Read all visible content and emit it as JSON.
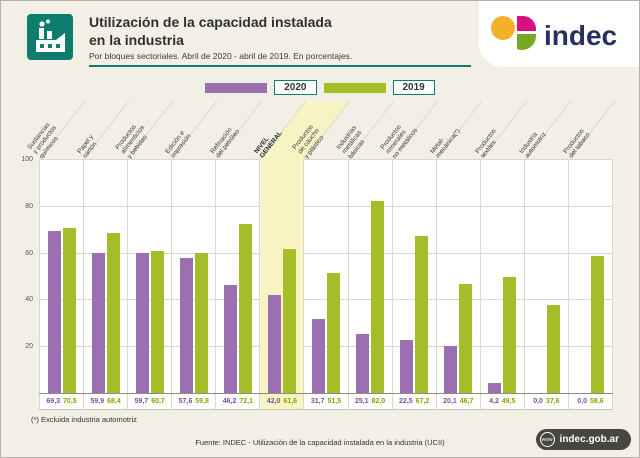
{
  "header": {
    "title_line1": "Utilización de la capacidad instalada",
    "title_line2": "en la industria",
    "subtitle": "Por bloques sectoriales. Abril de 2020 - abril de 2019. En porcentajes.",
    "logo_text": "indec"
  },
  "colors": {
    "teal": "#0e7d6d",
    "purple_2020": "#9a70b2",
    "green_2019": "#a4be2a",
    "highlight_yellow": "#f7f3c3",
    "logo_navy": "#26315f",
    "logo_yellow": "#f2b127",
    "logo_magenta": "#d6117e",
    "logo_green": "#76a822"
  },
  "chart_data": {
    "type": "bar",
    "title": "Utilización de la capacidad instalada en la industria",
    "xlabel": "",
    "ylabel": "",
    "ylim": [
      0,
      100
    ],
    "yticks": [
      100,
      80,
      60,
      40,
      20
    ],
    "grid": true,
    "legend_position": "top",
    "highlight_index": 5,
    "categories": [
      "Sustancias\ny productos\nquímicos",
      "Papel y\ncartón",
      "Productos\nalimenticios\ny bebidas",
      "Edición e\nimpresión",
      "Refinación\ndel petróleo",
      "NIVEL\nGENERAL",
      "Productos\nde caucho\ny plástico",
      "Industrias\nmetálicas\nbásicas",
      "Productos\nminerales\nno metálicos",
      "Metal-\nmecánica(*)",
      "Productos\ntextiles",
      "Industria\nautomotriz",
      "Productos\ndel tabaco"
    ],
    "series": [
      {
        "name": "2020",
        "color": "#9a70b2",
        "values": [
          69.3,
          59.9,
          59.7,
          57.6,
          46.2,
          42.0,
          31.7,
          25.1,
          22.5,
          20.1,
          4.2,
          0.0,
          0.0
        ]
      },
      {
        "name": "2019",
        "color": "#a4be2a",
        "values": [
          70.5,
          68.4,
          60.7,
          59.8,
          72.1,
          61.6,
          51.5,
          82.0,
          67.2,
          46.7,
          49.5,
          37.6,
          58.6
        ]
      }
    ],
    "value_labels": [
      [
        "69,3",
        "70,5"
      ],
      [
        "59,9",
        "68,4"
      ],
      [
        "59,7",
        "60,7"
      ],
      [
        "57,6",
        "59,8"
      ],
      [
        "46,2",
        "72,1"
      ],
      [
        "42,0",
        "61,6"
      ],
      [
        "31,7",
        "51,5"
      ],
      [
        "25,1",
        "82,0"
      ],
      [
        "22,5",
        "67,2"
      ],
      [
        "20,1",
        "46,7"
      ],
      [
        "4,2",
        "49,5"
      ],
      [
        "0,0",
        "37,6"
      ],
      [
        "0,0",
        "58,6"
      ]
    ]
  },
  "footer": {
    "footnote": "(*) Excluida industria automotriz",
    "source": "Fuente: INDEC - Utilización de la capacidad instalada en la industria (UCII)",
    "www": "www",
    "website": "indec.gob.ar"
  }
}
